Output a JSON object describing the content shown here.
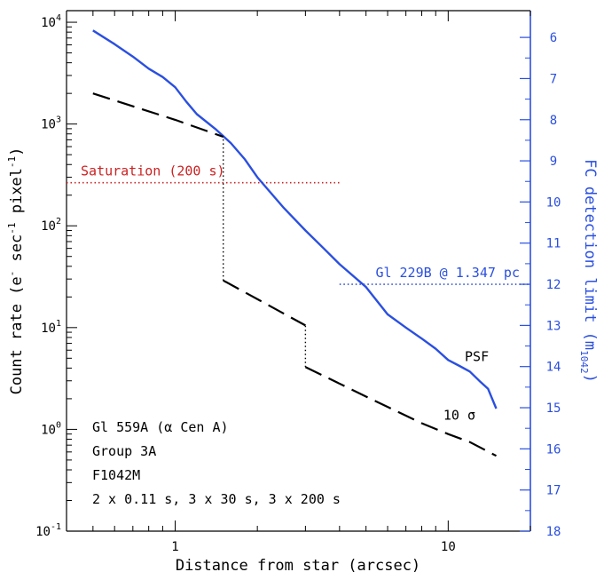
{
  "chart_data": {
    "type": "line",
    "xlabel": "Distance from star (arcsec)",
    "ylabel_parts": [
      "Count rate (e",
      "-",
      " sec",
      "-1",
      " pixel",
      "-1",
      ")"
    ],
    "y2label_parts": [
      "FC detection limit (m",
      "1042",
      ")"
    ],
    "x_scale": "log",
    "y_scale": "log",
    "xlim": [
      0.4,
      20
    ],
    "ylim": [
      0.1,
      13000
    ],
    "y2lim": [
      5.35,
      18
    ],
    "x_ticks": [
      {
        "value": 1,
        "label": "1"
      },
      {
        "value": 10,
        "label": "10"
      }
    ],
    "y_ticks": [
      {
        "value": 0.1,
        "base": "10",
        "exp": "-1"
      },
      {
        "value": 1,
        "base": "10",
        "exp": "0"
      },
      {
        "value": 10,
        "base": "10",
        "exp": "1"
      },
      {
        "value": 100,
        "base": "10",
        "exp": "2"
      },
      {
        "value": 1000,
        "base": "10",
        "exp": "3"
      },
      {
        "value": 10000,
        "base": "10",
        "exp": "4"
      }
    ],
    "y2_ticks": [
      {
        "value": 6,
        "label": "6"
      },
      {
        "value": 7,
        "label": "7"
      },
      {
        "value": 8,
        "label": "8"
      },
      {
        "value": 9,
        "label": "9"
      },
      {
        "value": 10,
        "label": "10"
      },
      {
        "value": 11,
        "label": "11"
      },
      {
        "value": 12,
        "label": "12"
      },
      {
        "value": 13,
        "label": "13"
      },
      {
        "value": 14,
        "label": "14"
      },
      {
        "value": 15,
        "label": "15"
      },
      {
        "value": 16,
        "label": "16"
      },
      {
        "value": 17,
        "label": "17"
      },
      {
        "value": 18,
        "label": "18"
      }
    ],
    "series": [
      {
        "name": "PSF",
        "color": "#2a4fe0",
        "style": "solid",
        "x": [
          0.5,
          0.6,
          0.7,
          0.8,
          0.9,
          1.0,
          1.1,
          1.2,
          1.4,
          1.6,
          1.8,
          2.0,
          2.5,
          3.0,
          3.5,
          4.0,
          5.0,
          6.0,
          7.0,
          8.0,
          9.0,
          10.0,
          11.0,
          12.0,
          13.0,
          14.0,
          15.0
        ],
        "values": [
          8300,
          6100,
          4600,
          3500,
          2900,
          2300,
          1650,
          1250,
          900,
          650,
          450,
          300,
          150,
          90,
          60,
          42,
          25,
          13.5,
          10,
          7.8,
          6.2,
          4.8,
          4.2,
          3.7,
          3.0,
          2.5,
          1.6
        ]
      },
      {
        "name": "10 σ",
        "color": "#000000",
        "style": "dashed",
        "x": [
          0.5,
          1.0,
          1.5,
          1.5,
          3.0,
          3.0,
          5.0,
          8.0,
          10.0,
          12.0,
          15.0
        ],
        "values": [
          2000,
          1100,
          750,
          29,
          10.5,
          4.1,
          2.1,
          1.15,
          0.9,
          0.75,
          0.55
        ]
      }
    ],
    "reference_lines": [
      {
        "label": "Saturation (200 s)",
        "color": "#cc2222",
        "y": 265,
        "x_from": 0.4,
        "x_to": 4.0
      },
      {
        "label": "Gl 229B @ 1.347 pc",
        "color": "#2a4fe0",
        "y2": 12,
        "x_from": 4.0,
        "x_to": 20
      }
    ],
    "connectors": [
      {
        "x": 1.5,
        "from": 29,
        "to": 750
      },
      {
        "x": 3.0,
        "from": 4.1,
        "to": 10.5
      }
    ],
    "series_labels": [
      {
        "text": "PSF",
        "x": 11.5,
        "y": 4.7
      },
      {
        "text": "10 σ",
        "x": 9.6,
        "y": 1.25
      }
    ],
    "notes": [
      "Gl 559A (α Cen A)",
      "Group 3A",
      "F1042M",
      "2 x 0.11 s, 3 x 30 s, 3 x 200 s"
    ]
  }
}
